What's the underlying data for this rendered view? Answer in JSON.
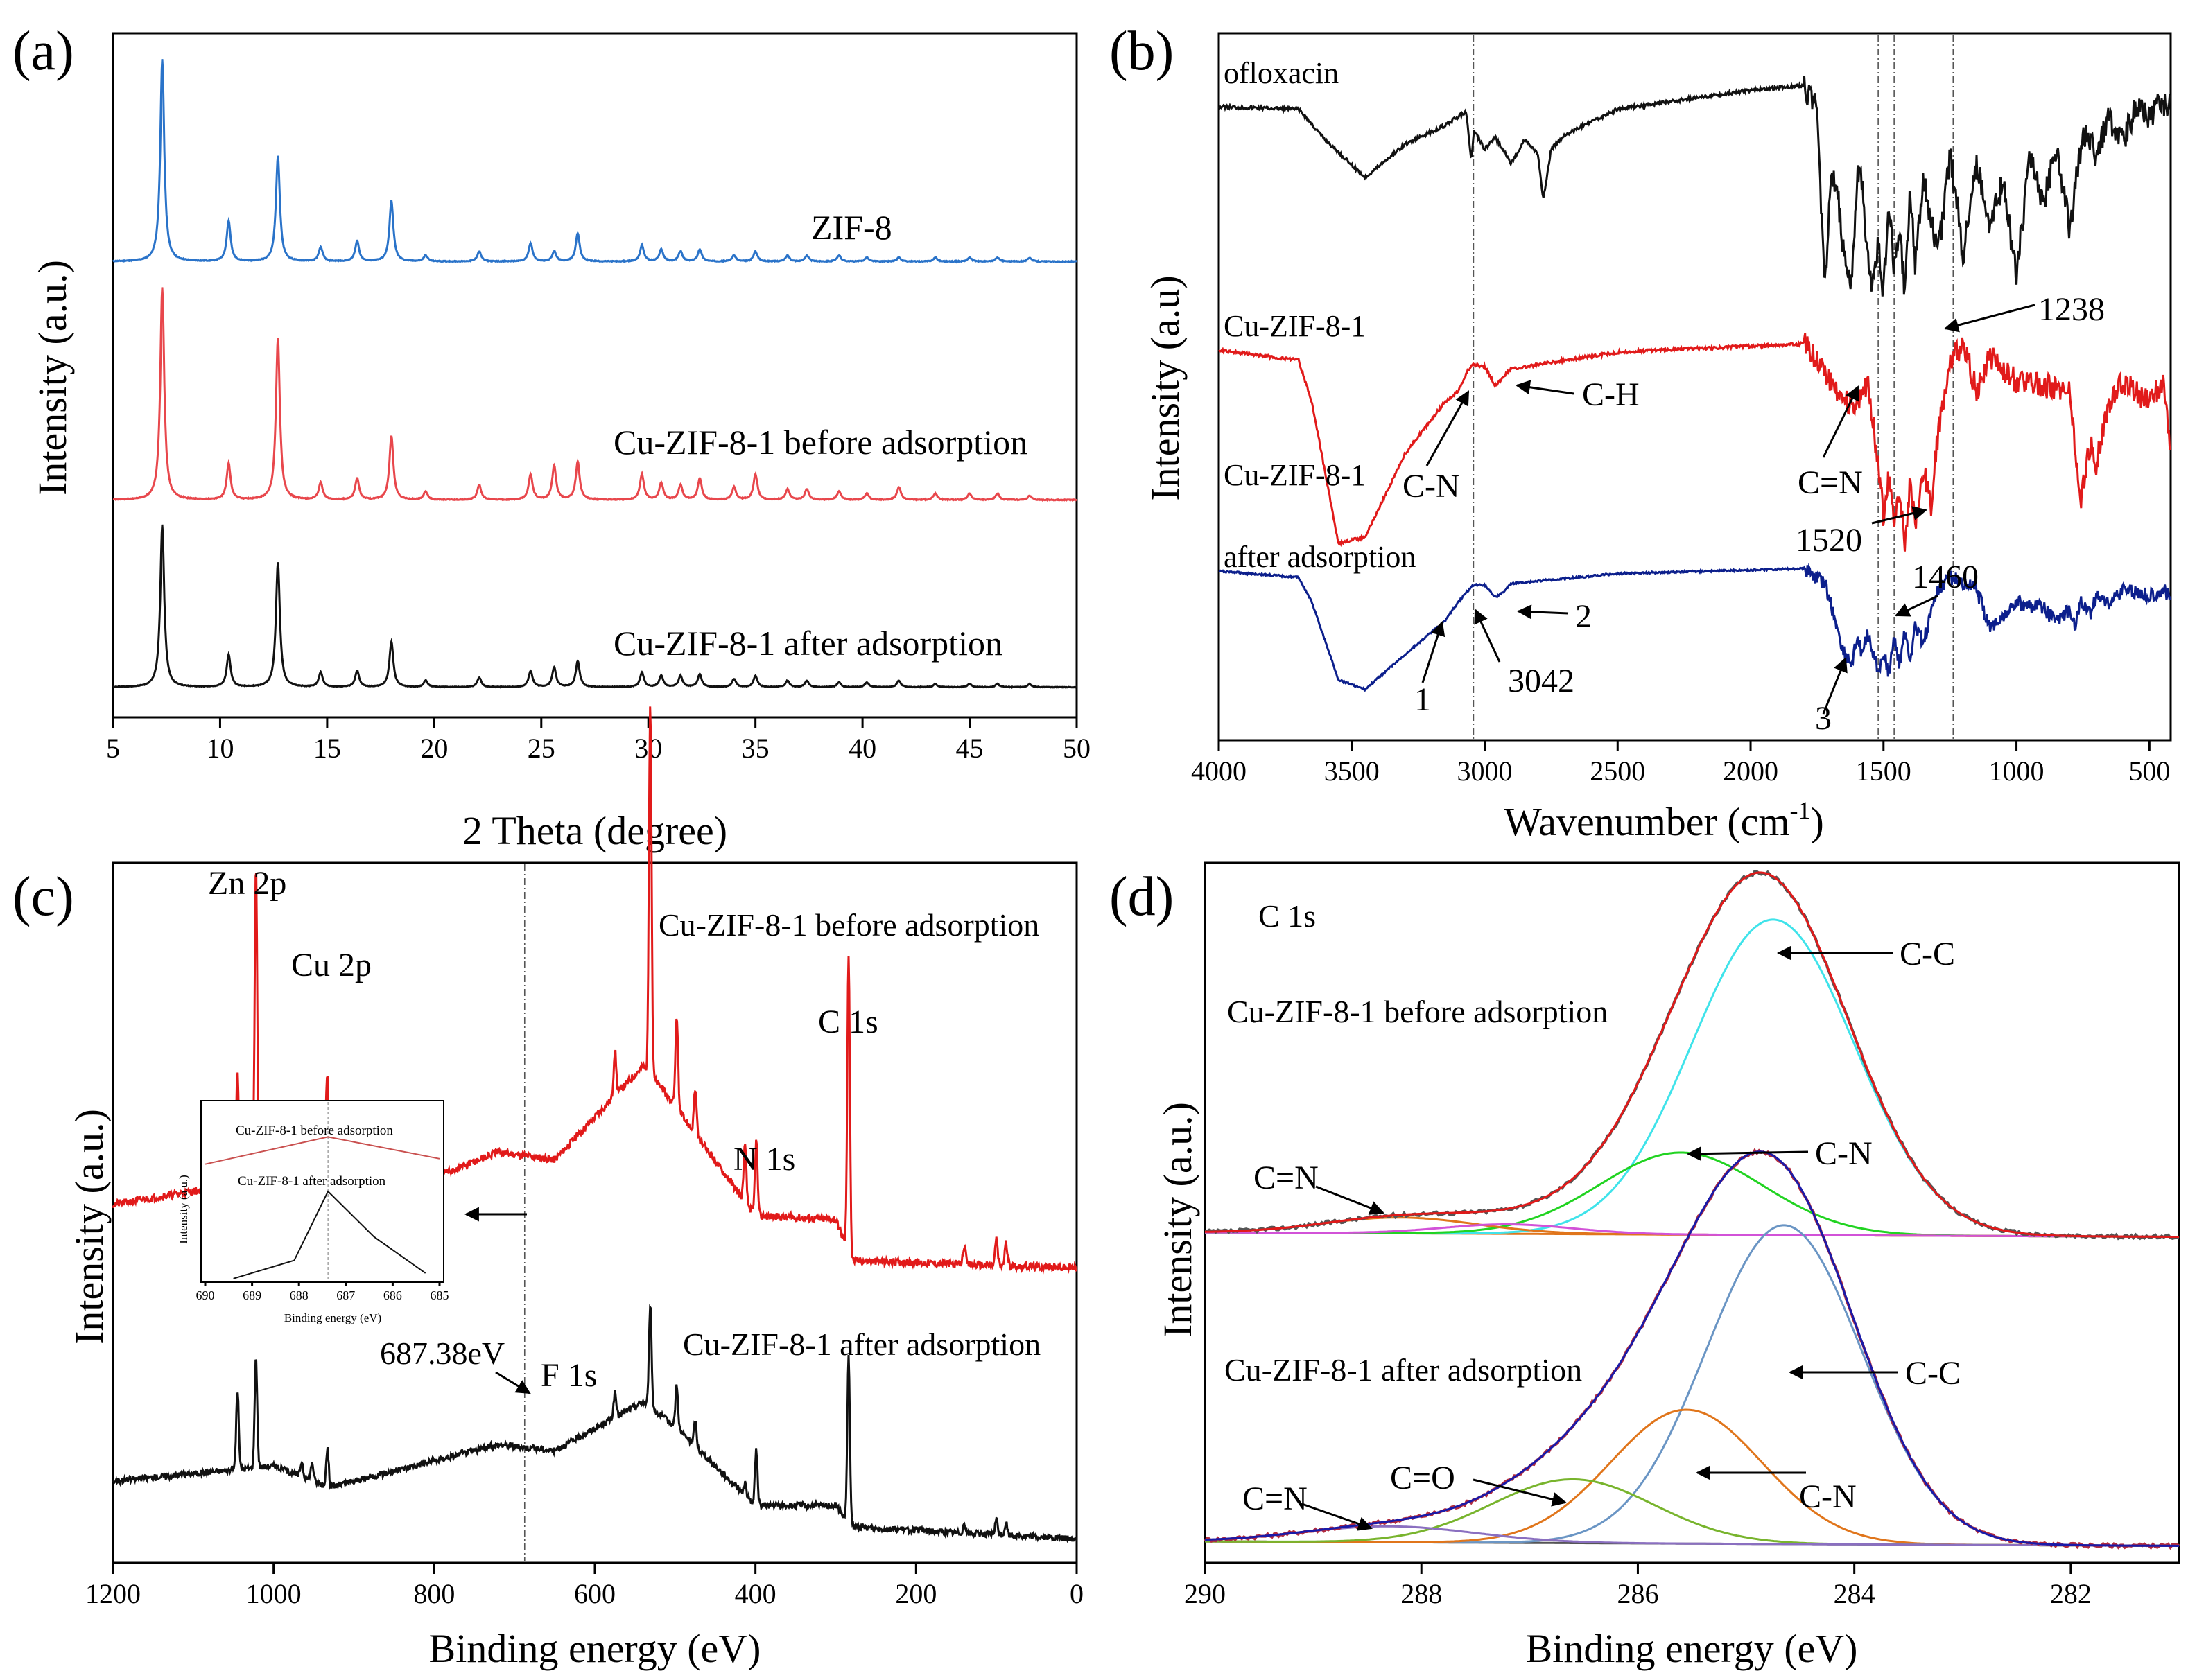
{
  "figure": {
    "panels": [
      {
        "label": "(a)",
        "xlabel": "2 Theta (degree)",
        "ylabel": "Intensity (a.u.)"
      },
      {
        "label": "(b)",
        "xlabel": "Wavenumber (cm",
        "xlabel_sup": "-1",
        "xlabel_end": ")",
        "ylabel": "Intensity (a.u)"
      },
      {
        "label": "(c)",
        "xlabel": "Binding energy (eV)",
        "ylabel": "Intensity (a.u.)"
      },
      {
        "label": "(d)",
        "xlabel": "Binding energy (eV)",
        "ylabel": "Intensity (a.u.)"
      }
    ]
  },
  "chart_data": [
    {
      "type": "line",
      "panel": "a",
      "title": "",
      "xlabel": "2 Theta (degree)",
      "ylabel": "Intensity (a.u.)",
      "xlim": [
        5,
        50
      ],
      "xticks": [
        "5",
        "10",
        "15",
        "20",
        "25",
        "30",
        "35",
        "40",
        "45",
        "50"
      ],
      "peaks_2theta": [
        7.3,
        10.4,
        12.7,
        14.7,
        16.4,
        18.0,
        19.6,
        22.1,
        24.5,
        25.6,
        26.7,
        29.7,
        30.6,
        31.5,
        32.4,
        34.0,
        35.0,
        36.5,
        37.4,
        38.9,
        40.2,
        41.7,
        43.4,
        45.0,
        46.3,
        47.8
      ],
      "series": [
        {
          "name": "ZIF-8",
          "color": "#2a73c9",
          "heights": [
            1.0,
            0.2,
            0.52,
            0.07,
            0.1,
            0.3,
            0.03,
            0.05,
            0.09,
            0.05,
            0.14,
            0.08,
            0.06,
            0.05,
            0.06,
            0.03,
            0.05,
            0.03,
            0.03,
            0.03,
            0.02,
            0.02,
            0.02,
            0.02,
            0.02,
            0.02
          ]
        },
        {
          "name": "Cu-ZIF-8-1 before adsorption",
          "color": "#e8474c",
          "heights": [
            1.0,
            0.17,
            0.76,
            0.08,
            0.1,
            0.3,
            0.04,
            0.07,
            0.12,
            0.16,
            0.18,
            0.12,
            0.08,
            0.07,
            0.1,
            0.06,
            0.12,
            0.05,
            0.05,
            0.04,
            0.03,
            0.06,
            0.03,
            0.03,
            0.03,
            0.02
          ]
        },
        {
          "name": "Cu-ZIF-8-1   after adsorption",
          "color": "#111111",
          "heights": [
            1.0,
            0.2,
            0.77,
            0.09,
            0.1,
            0.28,
            0.04,
            0.06,
            0.1,
            0.12,
            0.16,
            0.09,
            0.07,
            0.07,
            0.08,
            0.05,
            0.07,
            0.04,
            0.04,
            0.03,
            0.03,
            0.04,
            0.02,
            0.02,
            0.02,
            0.02
          ]
        }
      ]
    },
    {
      "type": "line",
      "panel": "b",
      "title": "",
      "xlabel": "Wavenumber (cm-1)",
      "ylabel": "Intensity (a.u)",
      "xlim": [
        4000,
        420
      ],
      "xticks": [
        "4000",
        "3500",
        "3000",
        "2500",
        "2000",
        "1500",
        "1000",
        "500"
      ],
      "reference_lines": [
        3042,
        1520,
        1460,
        1238
      ],
      "series": [
        {
          "name": "ofloxacin",
          "color": "#111111",
          "x": [
            4000,
            3700,
            3600,
            3450,
            3300,
            3150,
            3070,
            3050,
            3040,
            3000,
            2960,
            2900,
            2850,
            2800,
            2780,
            2750,
            2700,
            2500,
            2000,
            1800,
            1750,
            1720,
            1700,
            1680,
            1650,
            1620,
            1600,
            1580,
            1550,
            1520,
            1500,
            1480,
            1460,
            1440,
            1420,
            1400,
            1380,
            1350,
            1300,
            1280,
            1250,
            1200,
            1150,
            1100,
            1050,
            1000,
            950,
            900,
            850,
            800,
            750,
            700,
            650,
            600,
            550,
            500,
            450,
            420
          ],
          "y": [
            0.1,
            0.11,
            0.24,
            0.4,
            0.26,
            0.18,
            0.12,
            0.33,
            0.2,
            0.28,
            0.23,
            0.34,
            0.24,
            0.3,
            0.5,
            0.28,
            0.22,
            0.11,
            0.03,
            0.01,
            0.12,
            0.88,
            0.45,
            0.4,
            0.72,
            0.85,
            0.4,
            0.42,
            0.86,
            0.7,
            0.9,
            0.5,
            0.78,
            0.6,
            0.88,
            0.45,
            0.78,
            0.4,
            0.7,
            0.6,
            0.3,
            0.72,
            0.35,
            0.6,
            0.42,
            0.82,
            0.3,
            0.52,
            0.28,
            0.62,
            0.2,
            0.3,
            0.15,
            0.25,
            0.1,
            0.15,
            0.08,
            0.1
          ]
        },
        {
          "name": "Cu-ZIF-8-1",
          "color": "#e11a1a",
          "x": [
            4000,
            3700,
            3650,
            3550,
            3450,
            3300,
            3150,
            3100,
            3060,
            3042,
            3000,
            2960,
            2930,
            2900,
            2500,
            1800,
            1720,
            1650,
            1600,
            1580,
            1560,
            1520,
            1500,
            1480,
            1460,
            1440,
            1420,
            1400,
            1380,
            1350,
            1320,
            1300,
            1250,
            1200,
            1150,
            1100,
            1000,
            900,
            800,
            780,
            760,
            720,
            700,
            650,
            600,
            500,
            450,
            420
          ],
          "y": [
            0.05,
            0.1,
            0.3,
            0.98,
            0.95,
            0.55,
            0.3,
            0.25,
            0.14,
            0.12,
            0.13,
            0.22,
            0.18,
            0.14,
            0.06,
            0.02,
            0.15,
            0.3,
            0.3,
            0.28,
            0.2,
            0.6,
            0.85,
            0.65,
            0.9,
            0.7,
            1.0,
            0.7,
            0.9,
            0.62,
            0.8,
            0.5,
            0.1,
            0.02,
            0.25,
            0.08,
            0.2,
            0.22,
            0.25,
            0.5,
            0.8,
            0.48,
            0.6,
            0.3,
            0.2,
            0.3,
            0.2,
            0.5
          ]
        },
        {
          "name": "Cu-ZIF-8-1 after adsorption",
          "color": "#0c1f8c",
          "x": [
            4000,
            3700,
            3650,
            3550,
            3450,
            3300,
            3150,
            3100,
            3060,
            3042,
            3000,
            2960,
            2930,
            2900,
            2500,
            1800,
            1720,
            1650,
            1620,
            1600,
            1580,
            1560,
            1520,
            1500,
            1480,
            1460,
            1440,
            1420,
            1400,
            1380,
            1350,
            1320,
            1300,
            1250,
            1200,
            1150,
            1100,
            1000,
            900,
            850,
            800,
            780,
            760,
            720,
            700,
            650,
            600,
            500,
            450,
            420
          ],
          "y": [
            0.05,
            0.1,
            0.3,
            0.92,
            1.0,
            0.72,
            0.45,
            0.3,
            0.2,
            0.16,
            0.16,
            0.26,
            0.22,
            0.15,
            0.07,
            0.03,
            0.15,
            0.7,
            0.8,
            0.6,
            0.7,
            0.55,
            0.85,
            0.72,
            0.88,
            0.6,
            0.8,
            0.55,
            0.75,
            0.5,
            0.62,
            0.4,
            0.2,
            0.1,
            0.15,
            0.2,
            0.5,
            0.3,
            0.35,
            0.45,
            0.35,
            0.5,
            0.3,
            0.4,
            0.25,
            0.3,
            0.2,
            0.25,
            0.2,
            0.25
          ]
        }
      ]
    },
    {
      "type": "line",
      "panel": "c",
      "title": "",
      "xlabel": "Binding energy (eV)",
      "ylabel": "Intensity (a.u.)",
      "xlim": [
        1200,
        0
      ],
      "xticks": [
        "1200",
        "1000",
        "800",
        "600",
        "400",
        "200",
        "0"
      ],
      "reference_lines": [
        687.38
      ],
      "peak_energies": [
        1045,
        1022,
        965,
        952,
        933,
        575,
        531,
        498,
        475,
        413,
        399,
        284,
        140,
        100,
        88
      ],
      "series": [
        {
          "name": "Cu-ZIF-8-1 before adsorption",
          "color": "#e11a1a",
          "peak_heights": [
            0.3,
            0.85,
            0.12,
            0.15,
            0.28,
            0.12,
            1.0,
            0.25,
            0.12,
            0.15,
            0.2,
            0.8,
            0.05,
            0.07,
            0.06
          ],
          "baseline": [
            [
              1200,
              0.18
            ],
            [
              1000,
              0.25
            ],
            [
              935,
              0.31
            ],
            [
              930,
              0.14
            ],
            [
              720,
              0.32
            ],
            [
              650,
              0.3
            ],
            [
              540,
              0.55
            ],
            [
              520,
              0.5
            ],
            [
              400,
              0.15
            ],
            [
              300,
              0.14
            ],
            [
              280,
              0.03
            ],
            [
              0,
              0.01
            ]
          ]
        },
        {
          "name": "Cu-ZIF-8-1 after adsorption",
          "color": "#111111",
          "peak_heights": [
            0.26,
            0.36,
            0.05,
            0.06,
            0.12,
            0.08,
            0.34,
            0.14,
            0.08,
            0.04,
            0.18,
            0.54,
            0.03,
            0.05,
            0.04
          ],
          "baseline": [
            [
              1200,
              0.2
            ],
            [
              1000,
              0.25
            ],
            [
              930,
              0.18
            ],
            [
              720,
              0.32
            ],
            [
              650,
              0.3
            ],
            [
              540,
              0.46
            ],
            [
              500,
              0.38
            ],
            [
              400,
              0.12
            ],
            [
              300,
              0.12
            ],
            [
              280,
              0.05
            ],
            [
              0,
              0.01
            ]
          ]
        }
      ],
      "inset": {
        "type": "line",
        "xlim": [
          690,
          685
        ],
        "xticks": [
          "690",
          "689",
          "688",
          "687",
          "686",
          "685"
        ],
        "xlabel": "Binding energy (eV)",
        "ylabel": "Intensity (a.u.)",
        "series": [
          {
            "name": "Cu-ZIF-8-1 before adsorption",
            "color": "#c9504f",
            "x": [
              690,
              687.38,
              685
            ],
            "y": [
              0.65,
              0.8,
              0.68
            ]
          },
          {
            "name": "Cu-ZIF-8-1 after adsorption",
            "color": "#111111",
            "x": [
              689.4,
              688.1,
              687.38,
              686.4,
              685.3
            ],
            "y": [
              0.02,
              0.12,
              0.5,
              0.25,
              0.05
            ]
          }
        ]
      }
    },
    {
      "type": "line",
      "panel": "d",
      "title": "C 1s",
      "xlabel": "Binding energy (eV)",
      "ylabel": "Intensity (a.u.)",
      "xlim": [
        290,
        281
      ],
      "xticks": [
        "290",
        "288",
        "286",
        "284",
        "282"
      ],
      "groups": [
        {
          "name": "Cu-ZIF-8-1 before adsorption",
          "envelope_color": "#e11a1a",
          "measured_color": "#555555",
          "background_color": "#e0751b",
          "components": [
            {
              "name": "C-C",
              "center": 284.75,
              "height": 1.0,
              "sigma": 0.75,
              "color": "#3fe3ea"
            },
            {
              "name": "C-N",
              "center": 285.6,
              "height": 0.26,
              "sigma": 0.75,
              "color": "#21d321"
            },
            {
              "name": "C=N",
              "center": 288.2,
              "height": 0.05,
              "sigma": 0.7,
              "color": "#e0751b"
            },
            {
              "name": "",
              "center": 287.2,
              "height": 0.03,
              "sigma": 0.6,
              "color": "#d252d8"
            }
          ]
        },
        {
          "name": "Cu-ZIF-8-1 after adsorption",
          "envelope_color": "#1a1aa8",
          "measured_color": "#b22c3f",
          "background_color": "#555555",
          "components": [
            {
              "name": "C-C",
              "center": 284.65,
              "height": 1.0,
              "sigma": 0.72,
              "color": "#6a95c4"
            },
            {
              "name": "C-N",
              "center": 285.55,
              "height": 0.42,
              "sigma": 0.7,
              "color": "#e0751b"
            },
            {
              "name": "C=O",
              "center": 286.6,
              "height": 0.2,
              "sigma": 0.75,
              "color": "#78b42d"
            },
            {
              "name": "C=N",
              "center": 288.3,
              "height": 0.05,
              "sigma": 0.8,
              "color": "#8a6fc0"
            }
          ]
        }
      ]
    }
  ],
  "labels": {
    "a": {
      "zif8": "ZIF-8",
      "before": "Cu-ZIF-8-1 before adsorption",
      "after": "Cu-ZIF-8-1   after adsorption"
    },
    "b": {
      "ofloxacin": "ofloxacin",
      "cu": "Cu-ZIF-8-1",
      "after1": "Cu-ZIF-8-1",
      "after2": "after adsorption",
      "w1238": "1238",
      "ch": "C-H",
      "cn": "C-N",
      "ceqn": "C=N",
      "w1520": "1520",
      "w1460": "1460",
      "n1": "1",
      "n2": "2",
      "n3": "3",
      "w3042": "3042"
    },
    "c": {
      "zn": "Zn 2p",
      "cu": "Cu 2p",
      "before": "Cu-ZIF-8-1 before adsorption",
      "c1s": "C 1s",
      "n1s": "N 1s",
      "after": "Cu-ZIF-8-1 after adsorption",
      "f1s": "F 1s",
      "ev": "687.38eV",
      "inset_before": "Cu-ZIF-8-1 before adsorption",
      "inset_after": "Cu-ZIF-8-1 after adsorption",
      "inset_xlabel": "Binding energy (eV)",
      "inset_ylabel": "Intensity (a.u.)"
    },
    "d": {
      "c1s": "C 1s",
      "before": "Cu-ZIF-8-1 before adsorption",
      "after": "Cu-ZIF-8-1 after adsorption",
      "cc1": "C-C",
      "cn1": "C-N",
      "ceqn1": "C=N",
      "cc2": "C-C",
      "cn2": "C-N",
      "ceqo2": "C=O",
      "ceqn2": "C=N"
    }
  }
}
